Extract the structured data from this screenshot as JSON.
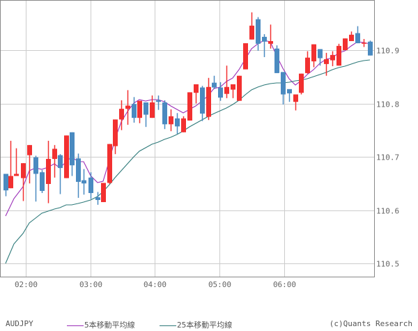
{
  "chart_data": {
    "type": "candlestick",
    "title": "AUDJPY",
    "symbol": "AUDJPY",
    "xlabel": "",
    "ylabel": "",
    "ylim": [
      110.486,
      110.994
    ],
    "y_ticks": [
      110.5,
      110.6,
      110.7,
      110.8,
      110.9
    ],
    "y_tick_labels": [
      "110.5",
      "110.6",
      "110.7",
      "110.8",
      "110.9"
    ],
    "x_ticks": [
      "02:00",
      "03:00",
      "04:00",
      "05:00",
      "06:00"
    ],
    "grid": true,
    "legend_position": "bottom",
    "up_color": "#f23030",
    "down_color": "#4a8ac0",
    "candles": [
      {
        "x": 8,
        "o": 110.668,
        "h": 110.668,
        "l": 110.626,
        "c": 110.637
      },
      {
        "x": 15,
        "o": 110.641,
        "h": 110.73,
        "l": 110.641,
        "c": 110.664
      },
      {
        "x": 23,
        "o": 110.664,
        "h": 110.716,
        "l": 110.664,
        "c": 110.668
      },
      {
        "x": 33,
        "o": 110.66,
        "h": 110.688,
        "l": 110.617,
        "c": 110.688
      },
      {
        "x": 42,
        "o": 110.703,
        "h": 110.722,
        "l": 110.65,
        "c": 110.722
      },
      {
        "x": 51,
        "o": 110.699,
        "h": 110.702,
        "l": 110.616,
        "c": 110.668
      },
      {
        "x": 60,
        "o": 110.671,
        "h": 110.675,
        "l": 110.632,
        "c": 110.636
      },
      {
        "x": 69,
        "o": 110.649,
        "h": 110.73,
        "l": 110.613,
        "c": 110.696
      },
      {
        "x": 78,
        "o": 110.696,
        "h": 110.722,
        "l": 110.661,
        "c": 110.715
      },
      {
        "x": 86,
        "o": 110.703,
        "h": 110.705,
        "l": 110.63,
        "c": 110.679
      },
      {
        "x": 95,
        "o": 110.66,
        "h": 110.74,
        "l": 110.66,
        "c": 110.74
      },
      {
        "x": 103,
        "o": 110.746,
        "h": 110.746,
        "l": 110.664,
        "c": 110.684
      },
      {
        "x": 112,
        "o": 110.697,
        "h": 110.706,
        "l": 110.623,
        "c": 110.653
      },
      {
        "x": 120,
        "o": 110.656,
        "h": 110.677,
        "l": 110.629,
        "c": 110.65
      },
      {
        "x": 130,
        "o": 110.661,
        "h": 110.671,
        "l": 110.621,
        "c": 110.632
      },
      {
        "x": 140,
        "o": 110.624,
        "h": 110.634,
        "l": 110.61,
        "c": 110.619
      },
      {
        "x": 148,
        "o": 110.615,
        "h": 110.651,
        "l": 110.615,
        "c": 110.651
      },
      {
        "x": 157,
        "o": 110.651,
        "h": 110.724,
        "l": 110.649,
        "c": 110.724
      },
      {
        "x": 165,
        "o": 110.72,
        "h": 110.77,
        "l": 110.705,
        "c": 110.77
      },
      {
        "x": 174,
        "o": 110.77,
        "h": 110.806,
        "l": 110.75,
        "c": 110.79
      },
      {
        "x": 183,
        "o": 110.79,
        "h": 110.825,
        "l": 110.76,
        "c": 110.796
      },
      {
        "x": 192,
        "o": 110.799,
        "h": 110.812,
        "l": 110.764,
        "c": 110.773
      },
      {
        "x": 200,
        "o": 110.773,
        "h": 110.805,
        "l": 110.763,
        "c": 110.805
      },
      {
        "x": 209,
        "o": 110.802,
        "h": 110.802,
        "l": 110.756,
        "c": 110.779
      },
      {
        "x": 218,
        "o": 110.773,
        "h": 110.815,
        "l": 110.773,
        "c": 110.802
      },
      {
        "x": 227,
        "o": 110.806,
        "h": 110.815,
        "l": 110.788,
        "c": 110.803
      },
      {
        "x": 236,
        "o": 110.802,
        "h": 110.806,
        "l": 110.752,
        "c": 110.761
      },
      {
        "x": 245,
        "o": 110.761,
        "h": 110.789,
        "l": 110.748,
        "c": 110.776
      },
      {
        "x": 254,
        "o": 110.772,
        "h": 110.782,
        "l": 110.743,
        "c": 110.757
      },
      {
        "x": 263,
        "o": 110.746,
        "h": 110.776,
        "l": 110.746,
        "c": 110.772
      },
      {
        "x": 272,
        "o": 110.768,
        "h": 110.821,
        "l": 110.768,
        "c": 110.821
      },
      {
        "x": 281,
        "o": 110.82,
        "h": 110.836,
        "l": 110.8,
        "c": 110.836
      },
      {
        "x": 290,
        "o": 110.83,
        "h": 110.833,
        "l": 110.767,
        "c": 110.781
      },
      {
        "x": 299,
        "o": 110.775,
        "h": 110.848,
        "l": 110.769,
        "c": 110.831
      },
      {
        "x": 307,
        "o": 110.839,
        "h": 110.852,
        "l": 110.827,
        "c": 110.83
      },
      {
        "x": 316,
        "o": 110.83,
        "h": 110.84,
        "l": 110.805,
        "c": 110.811
      },
      {
        "x": 325,
        "o": 110.818,
        "h": 110.871,
        "l": 110.81,
        "c": 110.831
      },
      {
        "x": 334,
        "o": 110.826,
        "h": 110.835,
        "l": 110.81,
        "c": 110.836
      },
      {
        "x": 343,
        "o": 110.805,
        "h": 110.852,
        "l": 110.805,
        "c": 110.852
      },
      {
        "x": 352,
        "o": 110.864,
        "h": 110.913,
        "l": 110.864,
        "c": 110.913
      },
      {
        "x": 361,
        "o": 110.92,
        "h": 110.971,
        "l": 110.92,
        "c": 110.946
      },
      {
        "x": 370,
        "o": 110.958,
        "h": 110.962,
        "l": 110.899,
        "c": 110.912
      },
      {
        "x": 379,
        "o": 110.925,
        "h": 110.93,
        "l": 110.887,
        "c": 110.916
      },
      {
        "x": 388,
        "o": 110.912,
        "h": 110.948,
        "l": 110.903,
        "c": 110.917
      },
      {
        "x": 397,
        "o": 110.903,
        "h": 110.909,
        "l": 110.857,
        "c": 110.857
      },
      {
        "x": 406,
        "o": 110.859,
        "h": 110.859,
        "l": 110.798,
        "c": 110.817
      },
      {
        "x": 415,
        "o": 110.827,
        "h": 110.825,
        "l": 110.803,
        "c": 110.819
      },
      {
        "x": 424,
        "o": 110.803,
        "h": 110.817,
        "l": 110.787,
        "c": 110.817
      },
      {
        "x": 432,
        "o": 110.82,
        "h": 110.856,
        "l": 110.817,
        "c": 110.856
      },
      {
        "x": 441,
        "o": 110.857,
        "h": 110.898,
        "l": 110.856,
        "c": 110.886
      },
      {
        "x": 450,
        "o": 110.879,
        "h": 110.911,
        "l": 110.868,
        "c": 110.911
      },
      {
        "x": 459,
        "o": 110.902,
        "h": 110.902,
        "l": 110.871,
        "c": 110.885
      },
      {
        "x": 468,
        "o": 110.874,
        "h": 110.895,
        "l": 110.852,
        "c": 110.883
      },
      {
        "x": 477,
        "o": 110.881,
        "h": 110.898,
        "l": 110.87,
        "c": 110.891
      },
      {
        "x": 486,
        "o": 110.871,
        "h": 110.912,
        "l": 110.871,
        "c": 110.908
      },
      {
        "x": 495,
        "o": 110.9,
        "h": 110.922,
        "l": 110.9,
        "c": 110.922
      },
      {
        "x": 504,
        "o": 110.917,
        "h": 110.935,
        "l": 110.917,
        "c": 110.929
      },
      {
        "x": 513,
        "o": 110.932,
        "h": 110.945,
        "l": 110.913,
        "c": 110.913
      },
      {
        "x": 522,
        "o": 110.913,
        "h": 110.921,
        "l": 110.906,
        "c": 110.914
      },
      {
        "x": 531,
        "o": 110.916,
        "h": 110.918,
        "l": 110.89,
        "c": 110.89
      }
    ],
    "series": [
      {
        "name": "5本移動平均線",
        "color": "#9b2fb8",
        "points": [
          [
            8,
            310
          ],
          [
            20,
            285
          ],
          [
            33,
            268
          ],
          [
            42,
            245
          ],
          [
            51,
            241
          ],
          [
            60,
            243
          ],
          [
            69,
            240
          ],
          [
            78,
            235
          ],
          [
            86,
            241
          ],
          [
            95,
            232
          ],
          [
            103,
            225
          ],
          [
            112,
            232
          ],
          [
            120,
            232
          ],
          [
            130,
            252
          ],
          [
            140,
            262
          ],
          [
            148,
            260
          ],
          [
            157,
            230
          ],
          [
            165,
            200
          ],
          [
            174,
            175
          ],
          [
            183,
            160
          ],
          [
            192,
            148
          ],
          [
            200,
            143
          ],
          [
            209,
            145
          ],
          [
            218,
            143
          ],
          [
            227,
            143
          ],
          [
            236,
            146
          ],
          [
            245,
            152
          ],
          [
            254,
            157
          ],
          [
            263,
            162
          ],
          [
            272,
            157
          ],
          [
            281,
            152
          ],
          [
            290,
            145
          ],
          [
            299,
            137
          ],
          [
            307,
            127
          ],
          [
            316,
            125
          ],
          [
            325,
            117
          ],
          [
            334,
            112
          ],
          [
            343,
            100
          ],
          [
            352,
            85
          ],
          [
            361,
            70
          ],
          [
            370,
            63
          ],
          [
            379,
            58
          ],
          [
            388,
            60
          ],
          [
            397,
            80
          ],
          [
            406,
            98
          ],
          [
            415,
            113
          ],
          [
            424,
            122
          ],
          [
            432,
            116
          ],
          [
            441,
            107
          ],
          [
            450,
            100
          ],
          [
            459,
            91
          ],
          [
            468,
            85
          ],
          [
            477,
            83
          ],
          [
            486,
            76
          ],
          [
            495,
            73
          ],
          [
            504,
            66
          ],
          [
            513,
            60
          ],
          [
            522,
            61
          ],
          [
            531,
            63
          ]
        ]
      },
      {
        "name": "25本移動平均線",
        "color": "#2e7a7a",
        "points": [
          [
            8,
            378
          ],
          [
            20,
            350
          ],
          [
            33,
            335
          ],
          [
            42,
            320
          ],
          [
            51,
            313
          ],
          [
            60,
            306
          ],
          [
            69,
            303
          ],
          [
            78,
            300
          ],
          [
            86,
            298
          ],
          [
            95,
            294
          ],
          [
            103,
            294
          ],
          [
            112,
            292
          ],
          [
            120,
            290
          ],
          [
            130,
            287
          ],
          [
            140,
            282
          ],
          [
            148,
            275
          ],
          [
            157,
            265
          ],
          [
            165,
            255
          ],
          [
            174,
            245
          ],
          [
            183,
            235
          ],
          [
            192,
            225
          ],
          [
            200,
            217
          ],
          [
            209,
            212
          ],
          [
            218,
            207
          ],
          [
            227,
            204
          ],
          [
            236,
            200
          ],
          [
            245,
            197
          ],
          [
            254,
            193
          ],
          [
            263,
            188
          ],
          [
            272,
            182
          ],
          [
            281,
            177
          ],
          [
            290,
            172
          ],
          [
            299,
            167
          ],
          [
            307,
            163
          ],
          [
            316,
            159
          ],
          [
            325,
            155
          ],
          [
            334,
            150
          ],
          [
            343,
            144
          ],
          [
            352,
            136
          ],
          [
            361,
            129
          ],
          [
            370,
            125
          ],
          [
            379,
            122
          ],
          [
            388,
            120
          ],
          [
            397,
            119
          ],
          [
            406,
            119
          ],
          [
            415,
            118
          ],
          [
            424,
            116
          ],
          [
            432,
            115
          ],
          [
            441,
            113
          ],
          [
            450,
            110
          ],
          [
            459,
            107
          ],
          [
            468,
            104
          ],
          [
            477,
            100
          ],
          [
            486,
            97
          ],
          [
            495,
            95
          ],
          [
            504,
            92
          ],
          [
            513,
            89
          ],
          [
            522,
            87
          ],
          [
            531,
            86
          ]
        ]
      }
    ]
  },
  "legend": {
    "symbol": "AUDJPY",
    "ma5_label": "5本移動平均線",
    "ma25_label": "25本移動平均線",
    "ma5_color": "#9b2fb8",
    "ma25_color": "#2e7a7a"
  },
  "credit": "(c)Quants Research"
}
